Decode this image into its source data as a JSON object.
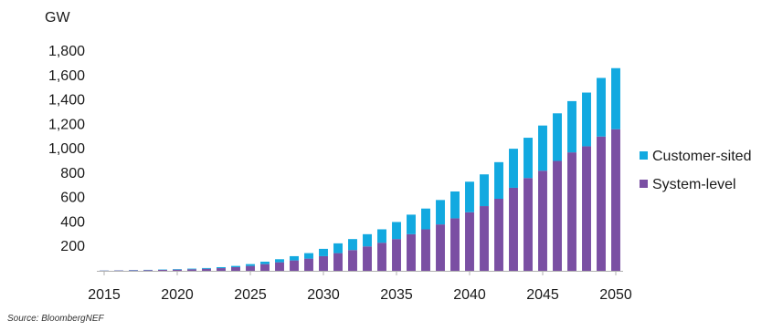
{
  "chart_data": {
    "type": "bar",
    "stacked": true,
    "unit_label": "GW",
    "xlim": [
      2015,
      2050
    ],
    "ylim": [
      0,
      1800
    ],
    "y_ticks": [
      200,
      400,
      600,
      800,
      1000,
      1200,
      1400,
      1600,
      1800
    ],
    "y_tick_labels": [
      "200",
      "400",
      "600",
      "800",
      "1,000",
      "1,200",
      "1,400",
      "1,600",
      "1,800"
    ],
    "x_tick_labels": [
      "2015",
      "2020",
      "2025",
      "2030",
      "2035",
      "2040",
      "2045",
      "2050"
    ],
    "x_ticks": [
      2015,
      2020,
      2025,
      2030,
      2035,
      2040,
      2045,
      2050
    ],
    "legend_position": "right",
    "categories": [
      2015,
      2016,
      2017,
      2018,
      2019,
      2020,
      2021,
      2022,
      2023,
      2024,
      2025,
      2026,
      2027,
      2028,
      2029,
      2030,
      2031,
      2032,
      2033,
      2034,
      2035,
      2036,
      2037,
      2038,
      2039,
      2040,
      2041,
      2042,
      2043,
      2044,
      2045,
      2046,
      2047,
      2048,
      2049,
      2050
    ],
    "series": [
      {
        "name": "System-level",
        "color": "#7a4fa3",
        "values": [
          2,
          3,
          4,
          6,
          8,
          10,
          13,
          17,
          22,
          30,
          40,
          55,
          70,
          85,
          100,
          120,
          145,
          170,
          200,
          230,
          260,
          300,
          340,
          380,
          430,
          480,
          530,
          590,
          680,
          760,
          820,
          900,
          970,
          1020,
          1100,
          1160
        ]
      },
      {
        "name": "Customer-sited",
        "color": "#12a9e0",
        "values": [
          1,
          1,
          2,
          2,
          3,
          4,
          5,
          6,
          8,
          10,
          15,
          20,
          25,
          35,
          45,
          60,
          80,
          90,
          100,
          110,
          140,
          160,
          170,
          200,
          220,
          250,
          260,
          300,
          320,
          330,
          370,
          390,
          420,
          440,
          480,
          500
        ]
      }
    ]
  },
  "source": "Source: BloombergNEF"
}
